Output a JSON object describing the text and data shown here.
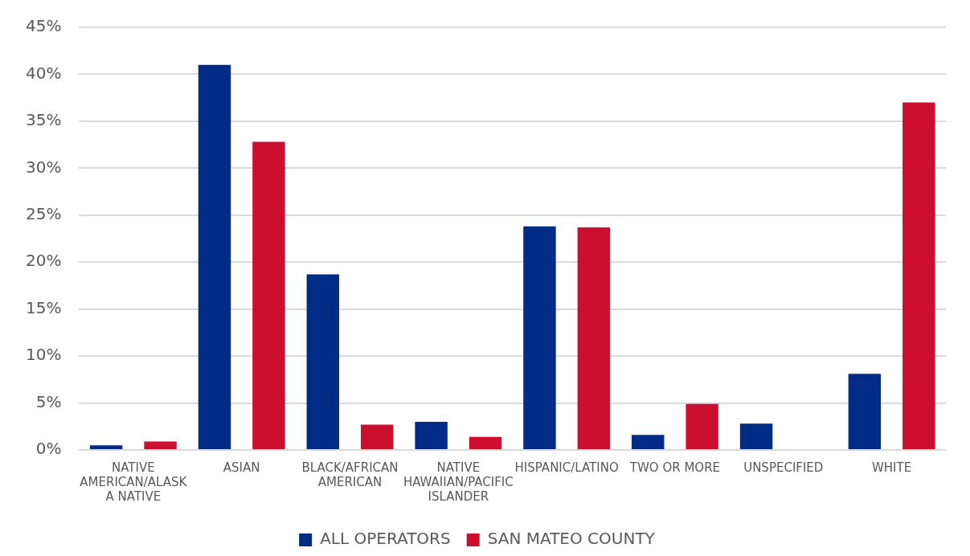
{
  "chart_data": {
    "type": "bar",
    "categories": [
      "NATIVE AMERICAN/ALASKA NATIVE",
      "ASIAN",
      "BLACK/AFRICAN AMERICAN",
      "NATIVE HAWAIIAN/PACIFIC ISLANDER",
      "HISPANIC/LATINO",
      "TWO OR MORE",
      "UNSPECIFIED",
      "WHITE"
    ],
    "series": [
      {
        "name": "ALL OPERATORS",
        "color": "#002c86",
        "values": [
          0.5,
          41.0,
          18.7,
          3.0,
          23.8,
          1.6,
          2.8,
          8.1
        ]
      },
      {
        "name": "SAN MATEO COUNTY",
        "color": "#cc0f2e",
        "values": [
          0.9,
          32.8,
          2.7,
          1.4,
          23.7,
          4.9,
          0,
          37.0
        ]
      }
    ],
    "ylim": [
      0,
      45
    ],
    "yticks": [
      {
        "value": 0,
        "label": "0%"
      },
      {
        "value": 5,
        "label": "5%"
      },
      {
        "value": 10,
        "label": "10%"
      },
      {
        "value": 15,
        "label": "15%"
      },
      {
        "value": 20,
        "label": "20%"
      },
      {
        "value": 25,
        "label": "25%"
      },
      {
        "value": 30,
        "label": "30%"
      },
      {
        "value": 35,
        "label": "35%"
      },
      {
        "value": 40,
        "label": "40%"
      },
      {
        "value": 45,
        "label": "45%"
      }
    ],
    "grid": "y",
    "legend": "bottom"
  }
}
